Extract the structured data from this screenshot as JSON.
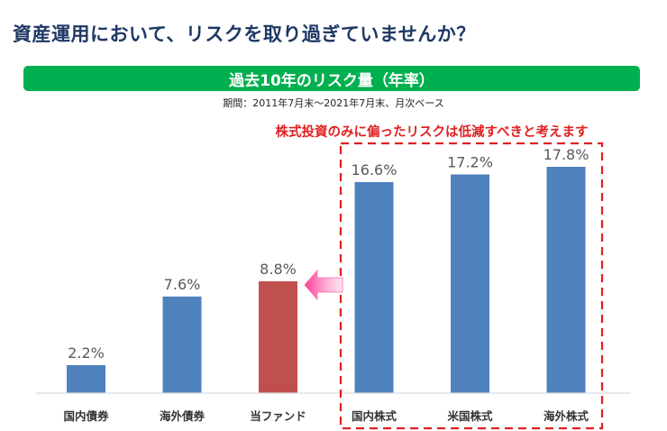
{
  "header": {
    "title": "資産運用において、リスクを取り過ぎていませんか？"
  },
  "chart_meta": {
    "banner": "過去10年のリスク量（年率）",
    "period": "期間：2011年7月末～2021年7月末、月次ベース",
    "highlight_note": "株式投資のみに偏ったリスクは低減すべきと考えます"
  },
  "chart_data": {
    "type": "bar",
    "title": "過去10年のリスク量（年率）",
    "categories": [
      "国内債券",
      "海外債券",
      "当ファンド",
      "国内株式",
      "米国株式",
      "海外株式"
    ],
    "values": [
      2.2,
      7.6,
      8.8,
      16.6,
      17.2,
      17.8
    ],
    "value_labels": [
      "2.2%",
      "7.6%",
      "8.8%",
      "16.6%",
      "17.2%",
      "17.8%"
    ],
    "unit": "%",
    "ylim": [
      0,
      20
    ],
    "grid": false,
    "bar_colors": [
      "#4f81bd",
      "#4f81bd",
      "#c0504d",
      "#4f81bd",
      "#4f81bd",
      "#4f81bd"
    ],
    "highlighted_categories": [
      "国内株式",
      "米国株式",
      "海外株式"
    ]
  },
  "colors": {
    "title": "#1f3864",
    "banner": "#00b050",
    "bar_default": "#4f81bd",
    "bar_fund": "#c0504d",
    "highlight": "#e02020",
    "arrow": "#ff66aa"
  }
}
